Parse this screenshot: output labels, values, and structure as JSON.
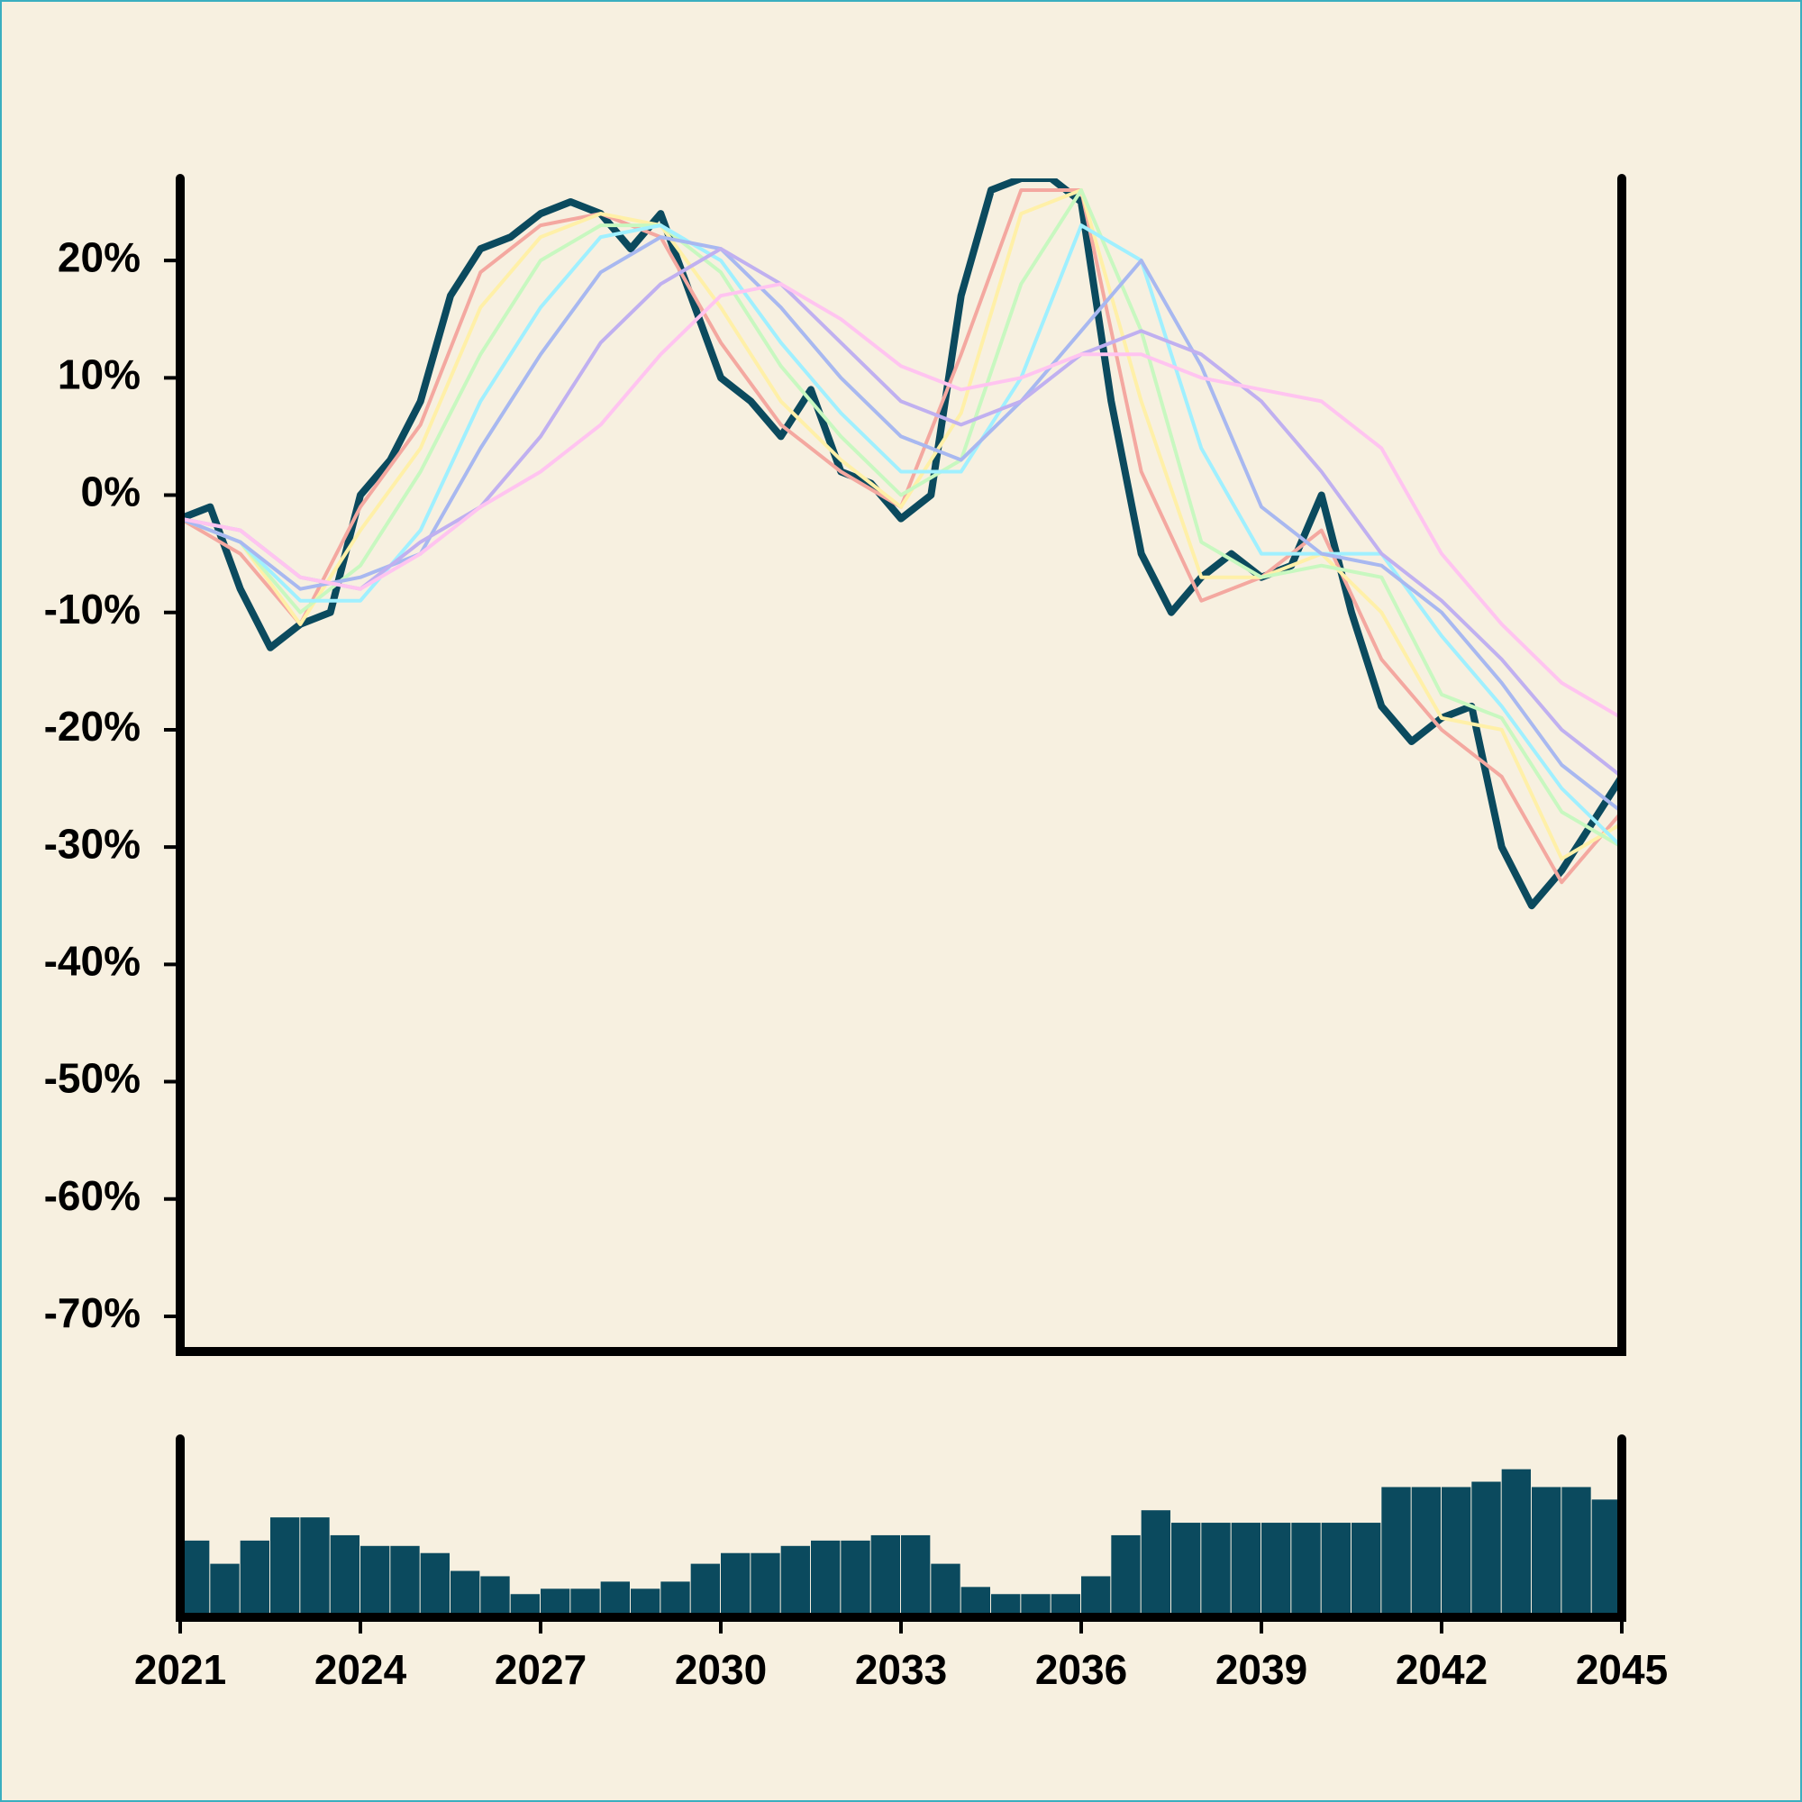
{
  "chart_data": [
    {
      "type": "line",
      "xlim": [
        2021,
        2045
      ],
      "ylim": [
        -73,
        27
      ],
      "yticks": [
        {
          "value": 20,
          "label": "20%"
        },
        {
          "value": 10,
          "label": "10%"
        },
        {
          "value": 0,
          "label": "0%"
        },
        {
          "value": -10,
          "label": "-10%"
        },
        {
          "value": -20,
          "label": "-20%"
        },
        {
          "value": -30,
          "label": "-30%"
        },
        {
          "value": -40,
          "label": "-40%"
        },
        {
          "value": -50,
          "label": "-50%"
        },
        {
          "value": -60,
          "label": "-60%"
        },
        {
          "value": -70,
          "label": "-70%"
        }
      ],
      "series": [
        {
          "color": "#0b4a5e",
          "x": [
            2021,
            2021.5,
            2022,
            2022.5,
            2023,
            2023.5,
            2024,
            2024.5,
            2025,
            2025.5,
            2026,
            2026.5,
            2027,
            2027.5,
            2028,
            2028.5,
            2029,
            2029.5,
            2030,
            2030.5,
            2031,
            2031.5,
            2032,
            2032.5,
            2033,
            2033.5,
            2034,
            2034.5,
            2035,
            2035.5,
            2036,
            2036.5,
            2037,
            2037.5,
            2038,
            2038.5,
            2039,
            2039.5,
            2040,
            2040.5,
            2041,
            2041.5,
            2042,
            2042.5,
            2043,
            2043.5,
            2044,
            2044.5,
            2045
          ],
          "values": [
            -2,
            -1,
            -8,
            -13,
            -11,
            -10,
            0,
            3,
            8,
            17,
            21,
            22,
            24,
            25,
            24,
            21,
            24,
            17,
            10,
            8,
            5,
            9,
            2,
            1,
            -2,
            0,
            17,
            26,
            27,
            27,
            25,
            8,
            -5,
            -10,
            -7,
            -5,
            -7,
            -6,
            0,
            -10,
            -18,
            -21,
            -19,
            -18,
            -30,
            -35,
            -32,
            -28,
            -24
          ]
        },
        {
          "color": "#f4a8a0",
          "x": [
            2021,
            2022,
            2023,
            2024,
            2025,
            2026,
            2027,
            2028,
            2029,
            2030,
            2031,
            2032,
            2033,
            2034,
            2035,
            2036,
            2037,
            2038,
            2039,
            2040,
            2041,
            2042,
            2043,
            2044,
            2045
          ],
          "values": [
            -2,
            -5,
            -11,
            -1,
            6,
            19,
            23,
            24,
            22,
            13,
            6,
            2,
            -1,
            12,
            26,
            26,
            2,
            -9,
            -7,
            -3,
            -14,
            -20,
            -24,
            -33,
            -27
          ]
        },
        {
          "color": "#fff0a8",
          "x": [
            2021,
            2022,
            2023,
            2024,
            2025,
            2026,
            2027,
            2028,
            2029,
            2030,
            2031,
            2032,
            2033,
            2034,
            2035,
            2036,
            2037,
            2038,
            2039,
            2040,
            2041,
            2042,
            2043,
            2044,
            2045
          ],
          "values": [
            -2,
            -4,
            -11,
            -3,
            4,
            16,
            22,
            24,
            23,
            16,
            8,
            3,
            -1,
            7,
            24,
            26,
            8,
            -7,
            -7,
            -5,
            -10,
            -19,
            -20,
            -31,
            -28
          ]
        },
        {
          "color": "#c8f8c0",
          "x": [
            2021,
            2022,
            2023,
            2024,
            2025,
            2026,
            2027,
            2028,
            2029,
            2030,
            2031,
            2032,
            2033,
            2034,
            2035,
            2036,
            2037,
            2038,
            2039,
            2040,
            2041,
            2042,
            2043,
            2044,
            2045
          ],
          "values": [
            -2,
            -4,
            -10,
            -6,
            2,
            12,
            20,
            23,
            23,
            19,
            11,
            5,
            0,
            3,
            18,
            26,
            14,
            -4,
            -7,
            -6,
            -7,
            -17,
            -19,
            -27,
            -30
          ]
        },
        {
          "color": "#a0f0ff",
          "x": [
            2021,
            2022,
            2023,
            2024,
            2025,
            2026,
            2027,
            2028,
            2029,
            2030,
            2031,
            2032,
            2033,
            2034,
            2035,
            2036,
            2037,
            2038,
            2039,
            2040,
            2041,
            2042,
            2043,
            2044,
            2045
          ],
          "values": [
            -2,
            -4,
            -9,
            -9,
            -3,
            8,
            16,
            22,
            23,
            20,
            13,
            7,
            2,
            2,
            10,
            23,
            20,
            4,
            -5,
            -5,
            -5,
            -12,
            -18,
            -25,
            -30
          ]
        },
        {
          "color": "#a8b8f0",
          "x": [
            2021,
            2022,
            2023,
            2024,
            2025,
            2026,
            2027,
            2028,
            2029,
            2030,
            2031,
            2032,
            2033,
            2034,
            2035,
            2036,
            2037,
            2038,
            2039,
            2040,
            2041,
            2042,
            2043,
            2044,
            2045
          ],
          "values": [
            -2,
            -4,
            -8,
            -7,
            -5,
            4,
            12,
            19,
            22,
            21,
            16,
            10,
            5,
            3,
            8,
            14,
            20,
            11,
            -1,
            -5,
            -6,
            -10,
            -16,
            -23,
            -27
          ]
        },
        {
          "color": "#c0b0f0",
          "x": [
            2021,
            2022,
            2023,
            2024,
            2025,
            2026,
            2027,
            2028,
            2029,
            2030,
            2031,
            2032,
            2033,
            2034,
            2035,
            2036,
            2037,
            2038,
            2039,
            2040,
            2041,
            2042,
            2043,
            2044,
            2045
          ],
          "values": [
            -2,
            -3,
            -7,
            -8,
            -4,
            -1,
            5,
            13,
            18,
            21,
            18,
            13,
            8,
            6,
            8,
            12,
            14,
            12,
            8,
            2,
            -5,
            -9,
            -14,
            -20,
            -24
          ]
        },
        {
          "color": "#ffc4f0",
          "x": [
            2021,
            2022,
            2023,
            2024,
            2025,
            2026,
            2027,
            2028,
            2029,
            2030,
            2031,
            2032,
            2033,
            2034,
            2035,
            2036,
            2037,
            2038,
            2039,
            2040,
            2041,
            2042,
            2043,
            2044,
            2045
          ],
          "values": [
            -2,
            -3,
            -7,
            -8,
            -5,
            -1,
            2,
            6,
            12,
            17,
            18,
            15,
            11,
            9,
            10,
            12,
            12,
            10,
            9,
            8,
            4,
            -5,
            -11,
            -16,
            -19
          ]
        }
      ]
    },
    {
      "type": "bar",
      "color": "#0b4a5e",
      "xlim": [
        2021,
        2045
      ],
      "ylim": [
        0,
        100
      ],
      "xticks": [
        2021,
        2024,
        2027,
        2030,
        2033,
        2036,
        2039,
        2042,
        2045
      ],
      "x": [
        2021,
        2021.5,
        2022,
        2022.5,
        2023,
        2023.5,
        2024,
        2024.5,
        2025,
        2025.5,
        2026,
        2026.5,
        2027,
        2027.5,
        2028,
        2028.5,
        2029,
        2029.5,
        2030,
        2030.5,
        2031,
        2031.5,
        2032,
        2032.5,
        2033,
        2033.5,
        2034,
        2034.5,
        2035,
        2035.5,
        2036,
        2036.5,
        2037,
        2037.5,
        2038,
        2038.5,
        2039,
        2039.5,
        2040,
        2040.5,
        2041,
        2041.5,
        2042,
        2042.5,
        2043,
        2043.5,
        2044,
        2044.5
      ],
      "values": [
        43,
        30,
        43,
        56,
        56,
        46,
        40,
        40,
        36,
        26,
        23,
        13,
        16,
        16,
        20,
        16,
        20,
        30,
        36,
        36,
        40,
        43,
        43,
        46,
        46,
        30,
        17,
        13,
        13,
        13,
        23,
        46,
        60,
        53,
        53,
        53,
        53,
        53,
        53,
        53,
        73,
        73,
        73,
        76,
        83,
        73,
        73,
        66
      ]
    }
  ]
}
